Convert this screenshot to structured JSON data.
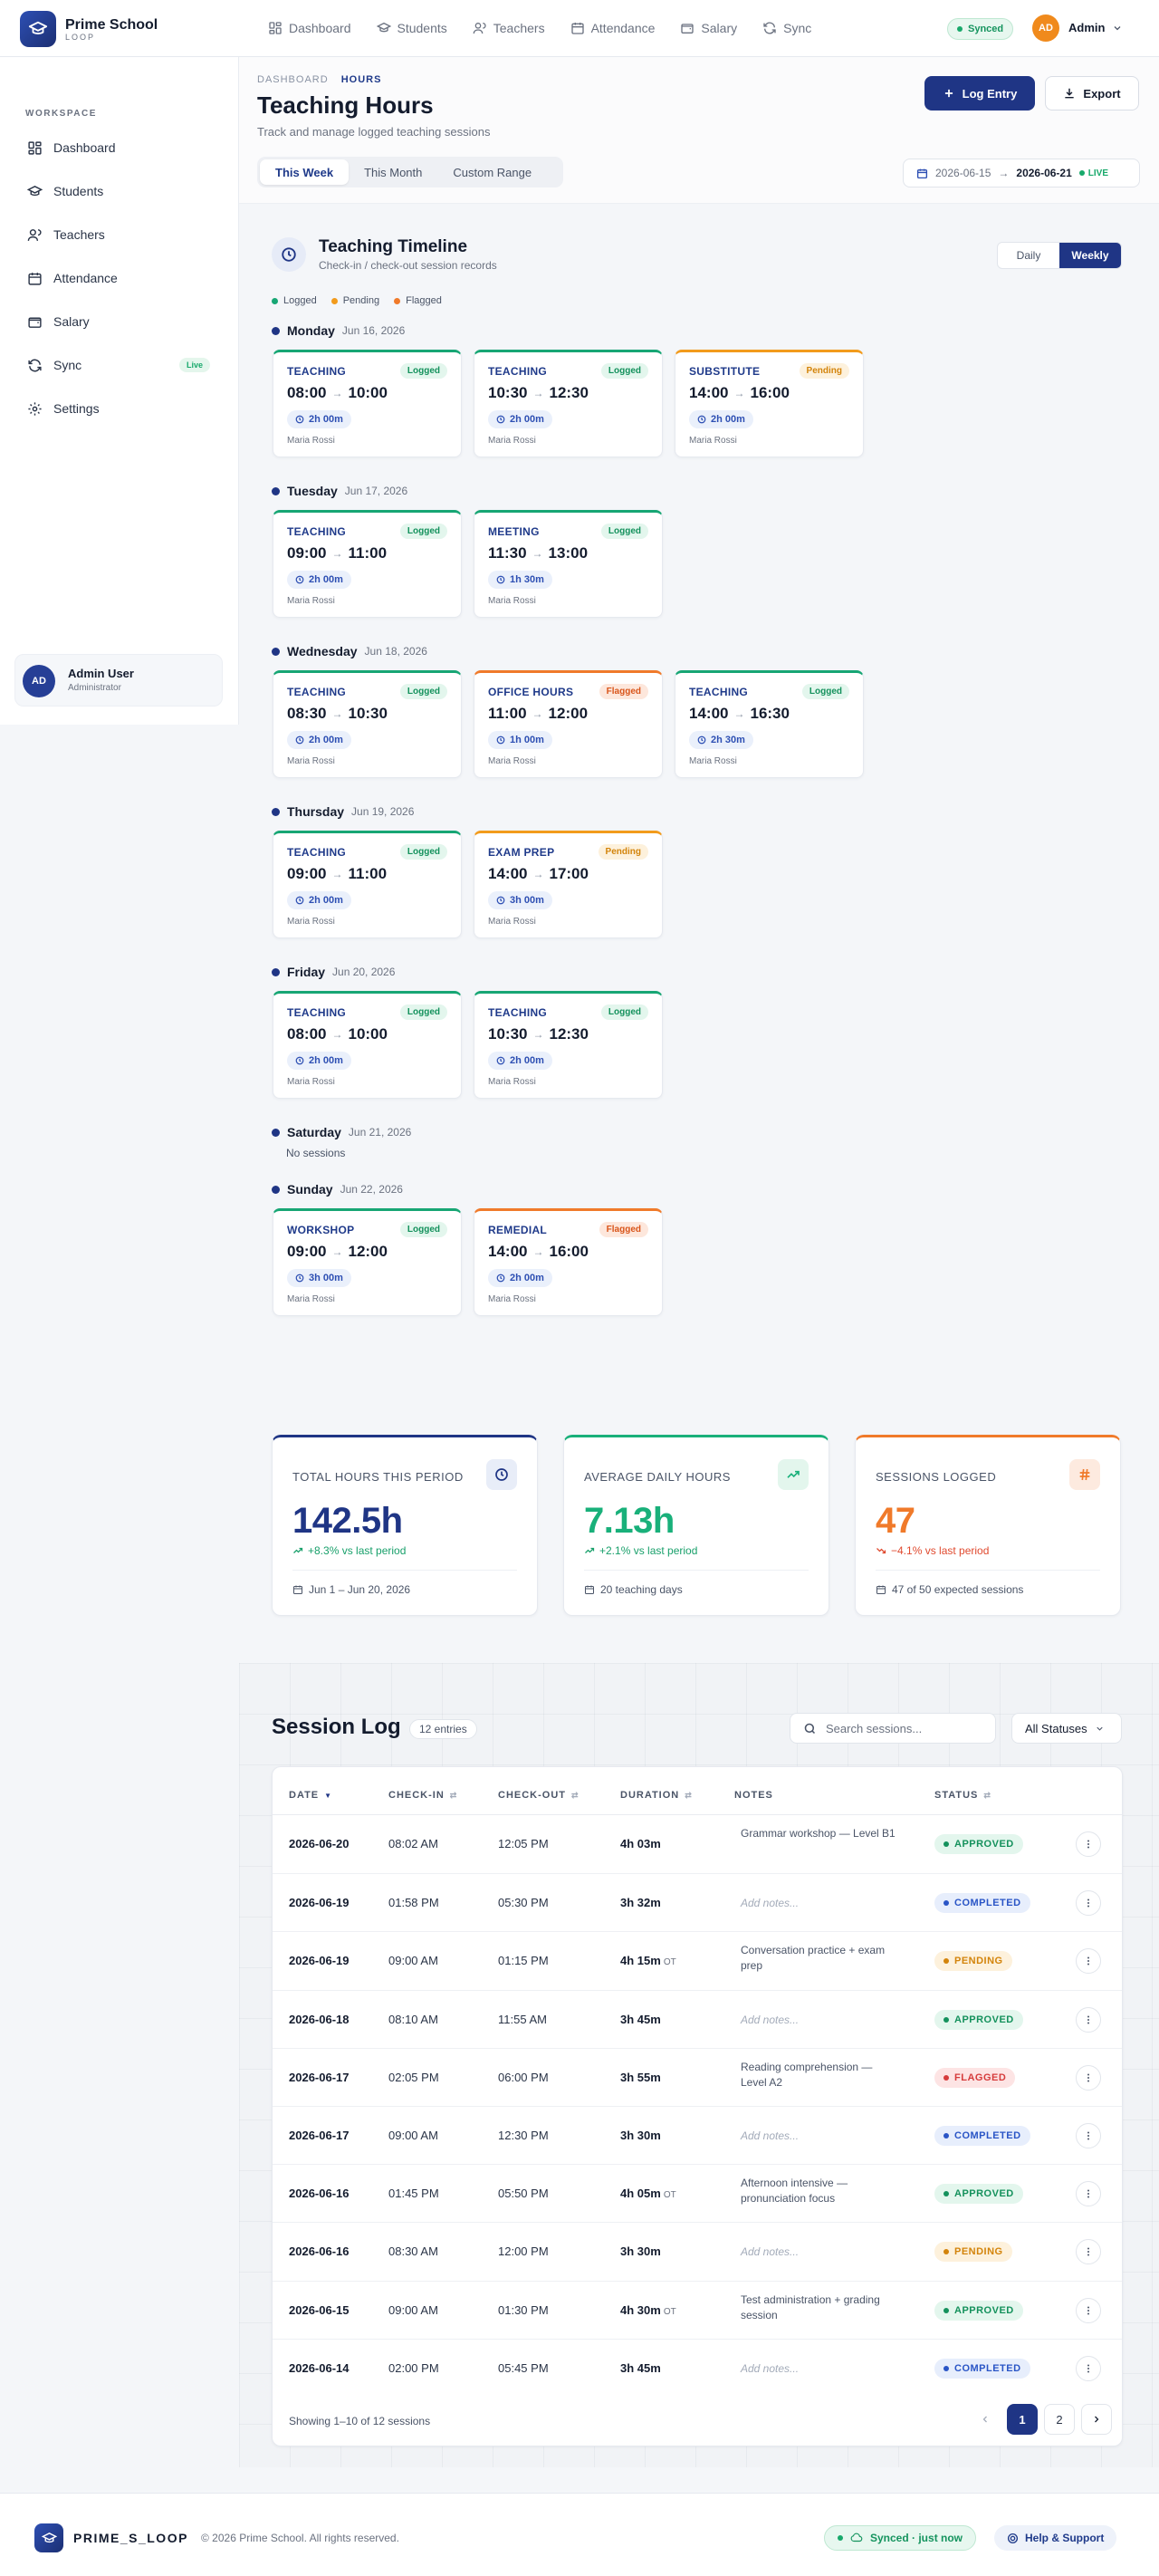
{
  "brand": {
    "name": "Prime School",
    "sub": "LOOP"
  },
  "topnav": [
    {
      "label": "Dashboard",
      "icon": "grid-icon"
    },
    {
      "label": "Students",
      "icon": "graduation-cap-icon"
    },
    {
      "label": "Teachers",
      "icon": "users-icon"
    },
    {
      "label": "Attendance",
      "icon": "calendar-check-icon"
    },
    {
      "label": "Salary",
      "icon": "wallet-icon"
    },
    {
      "label": "Sync",
      "icon": "sync-icon"
    }
  ],
  "topbar": {
    "synced": "Synced",
    "admin_initials": "AD",
    "admin_name": "Admin"
  },
  "sidebar": {
    "section": "WORKSPACE",
    "items": [
      {
        "label": "Dashboard"
      },
      {
        "label": "Students"
      },
      {
        "label": "Teachers"
      },
      {
        "label": "Attendance"
      },
      {
        "label": "Salary"
      },
      {
        "label": "Sync",
        "badge": "Live"
      },
      {
        "label": "Settings"
      }
    ],
    "user": {
      "initials": "AD",
      "name": "Admin User",
      "role": "Administrator"
    }
  },
  "header": {
    "crumb_root": "DASHBOARD",
    "crumb_current": "HOURS",
    "title": "Teaching Hours",
    "subtitle": "Track and manage logged teaching sessions",
    "log_entry": "Log Entry",
    "export": "Export",
    "tabs": [
      "This Week",
      "This Month",
      "Custom Range"
    ],
    "date_from": "2026-06-15",
    "date_arrow": "→",
    "date_to": "2026-06-21",
    "live": "LIVE"
  },
  "timeline": {
    "title": "Teaching Timeline",
    "subtitle": "Check-in / check-out session records",
    "toggle": [
      "Daily",
      "Weekly"
    ],
    "legend": [
      {
        "label": "Logged",
        "color": "#17a674"
      },
      {
        "label": "Pending",
        "color": "#f29b1c"
      },
      {
        "label": "Flagged",
        "color": "#f07a2a"
      }
    ],
    "no_sessions": "No sessions",
    "days": [
      {
        "name": "Monday",
        "date": "Jun 16, 2026",
        "sessions": [
          {
            "type": "TEACHING",
            "status": "Logged",
            "start": "08:00",
            "end": "10:00",
            "dur": "2h 00m",
            "who": "Maria Rossi"
          },
          {
            "type": "TEACHING",
            "status": "Logged",
            "start": "10:30",
            "end": "12:30",
            "dur": "2h 00m",
            "who": "Maria Rossi"
          },
          {
            "type": "SUBSTITUTE",
            "status": "Pending",
            "start": "14:00",
            "end": "16:00",
            "dur": "2h 00m",
            "who": "Maria Rossi"
          }
        ]
      },
      {
        "name": "Tuesday",
        "date": "Jun 17, 2026",
        "sessions": [
          {
            "type": "TEACHING",
            "status": "Logged",
            "start": "09:00",
            "end": "11:00",
            "dur": "2h 00m",
            "who": "Maria Rossi"
          },
          {
            "type": "MEETING",
            "status": "Logged",
            "start": "11:30",
            "end": "13:00",
            "dur": "1h 30m",
            "who": "Maria Rossi"
          }
        ]
      },
      {
        "name": "Wednesday",
        "date": "Jun 18, 2026",
        "sessions": [
          {
            "type": "TEACHING",
            "status": "Logged",
            "start": "08:30",
            "end": "10:30",
            "dur": "2h 00m",
            "who": "Maria Rossi"
          },
          {
            "type": "OFFICE HOURS",
            "status": "Flagged",
            "start": "11:00",
            "end": "12:00",
            "dur": "1h 00m",
            "who": "Maria Rossi"
          },
          {
            "type": "TEACHING",
            "status": "Logged",
            "start": "14:00",
            "end": "16:30",
            "dur": "2h 30m",
            "who": "Maria Rossi"
          }
        ]
      },
      {
        "name": "Thursday",
        "date": "Jun 19, 2026",
        "sessions": [
          {
            "type": "TEACHING",
            "status": "Logged",
            "start": "09:00",
            "end": "11:00",
            "dur": "2h 00m",
            "who": "Maria Rossi"
          },
          {
            "type": "EXAM PREP",
            "status": "Pending",
            "start": "14:00",
            "end": "17:00",
            "dur": "3h 00m",
            "who": "Maria Rossi"
          }
        ]
      },
      {
        "name": "Friday",
        "date": "Jun 20, 2026",
        "sessions": [
          {
            "type": "TEACHING",
            "status": "Logged",
            "start": "08:00",
            "end": "10:00",
            "dur": "2h 00m",
            "who": "Maria Rossi"
          },
          {
            "type": "TEACHING",
            "status": "Logged",
            "start": "10:30",
            "end": "12:30",
            "dur": "2h 00m",
            "who": "Maria Rossi"
          }
        ]
      },
      {
        "name": "Saturday",
        "date": "Jun 21, 2026",
        "sessions": []
      },
      {
        "name": "Sunday",
        "date": "Jun 22, 2026",
        "sessions": [
          {
            "type": "WORKSHOP",
            "status": "Logged",
            "start": "09:00",
            "end": "12:00",
            "dur": "3h 00m",
            "who": "Maria Rossi"
          },
          {
            "type": "REMEDIAL",
            "status": "Flagged",
            "start": "14:00",
            "end": "16:00",
            "dur": "2h 00m",
            "who": "Maria Rossi"
          }
        ]
      }
    ]
  },
  "stats": [
    {
      "label": "TOTAL HOURS THIS PERIOD",
      "value": "142.5h",
      "delta": "+8.3% vs last period",
      "foot": "Jun 1 – Jun 20, 2026",
      "icon": "clock-icon"
    },
    {
      "label": "AVERAGE DAILY HOURS",
      "value": "7.13h",
      "delta": "+2.1% vs last period",
      "foot": "20 teaching days",
      "icon": "trending-up-icon"
    },
    {
      "label": "SESSIONS LOGGED",
      "value": "47",
      "delta": "−4.1% vs last period",
      "foot": "47 of 50 expected sessions",
      "icon": "hash-icon"
    }
  ],
  "log": {
    "title": "Session Log",
    "count": "12 entries",
    "search_placeholder": "Search sessions...",
    "status_filter": "All Statuses",
    "columns": [
      "DATE",
      "CHECK-IN",
      "CHECK-OUT",
      "DURATION",
      "NOTES",
      "STATUS"
    ],
    "rows": [
      {
        "date": "2026-06-20",
        "in": "08:02 AM",
        "out": "12:05 PM",
        "dur": "4h 03m",
        "ot": "",
        "notes": "Grammar workshop — Level B1",
        "status": "APPROVED"
      },
      {
        "date": "2026-06-19",
        "in": "01:58 PM",
        "out": "05:30 PM",
        "dur": "3h 32m",
        "ot": "",
        "notes": "",
        "status": "COMPLETED"
      },
      {
        "date": "2026-06-19",
        "in": "09:00 AM",
        "out": "01:15 PM",
        "dur": "4h 15m",
        "ot": "OT",
        "notes": "Conversation practice + exam prep",
        "status": "PENDING"
      },
      {
        "date": "2026-06-18",
        "in": "08:10 AM",
        "out": "11:55 AM",
        "dur": "3h 45m",
        "ot": "",
        "notes": "",
        "status": "APPROVED"
      },
      {
        "date": "2026-06-17",
        "in": "02:05 PM",
        "out": "06:00 PM",
        "dur": "3h 55m",
        "ot": "",
        "notes": "Reading comprehension — Level A2",
        "status": "FLAGGED"
      },
      {
        "date": "2026-06-17",
        "in": "09:00 AM",
        "out": "12:30 PM",
        "dur": "3h 30m",
        "ot": "",
        "notes": "",
        "status": "COMPLETED"
      },
      {
        "date": "2026-06-16",
        "in": "01:45 PM",
        "out": "05:50 PM",
        "dur": "4h 05m",
        "ot": "OT",
        "notes": "Afternoon intensive — pronunciation focus",
        "status": "APPROVED"
      },
      {
        "date": "2026-06-16",
        "in": "08:30 AM",
        "out": "12:00 PM",
        "dur": "3h 30m",
        "ot": "",
        "notes": "",
        "status": "PENDING"
      },
      {
        "date": "2026-06-15",
        "in": "09:00 AM",
        "out": "01:30 PM",
        "dur": "4h 30m",
        "ot": "OT",
        "notes": "Test administration + grading session",
        "status": "APPROVED"
      },
      {
        "date": "2026-06-14",
        "in": "02:00 PM",
        "out": "05:45 PM",
        "dur": "3h 45m",
        "ot": "",
        "notes": "",
        "status": "COMPLETED"
      }
    ],
    "notes_placeholder": "Add notes...",
    "showing": "Showing 1–10 of 12 sessions",
    "pages": [
      "1",
      "2"
    ]
  },
  "footer": {
    "brand": "PRIME_S_LOOP",
    "copyright": "© 2026 Prime School. All rights reserved.",
    "synced": "Synced · just now",
    "help": "Help & Support"
  }
}
